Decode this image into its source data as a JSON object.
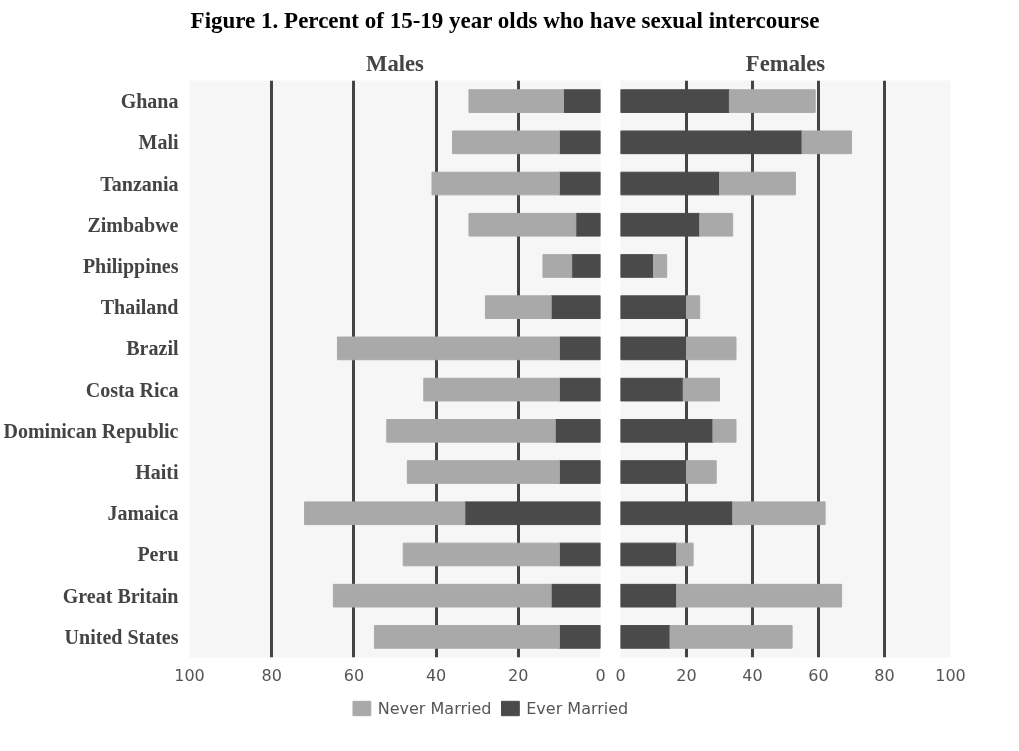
{
  "chart_data": [
    {
      "type": "bar",
      "title": "Figure 1. Percent of 15-19 year olds who have sexual intercourse",
      "subtitle": "Males",
      "orientation": "horizontal",
      "stacked": true,
      "categories": [
        "Ghana",
        "Mali",
        "Tanzania",
        "Zimbabwe",
        "Philippines",
        "Thailand",
        "Brazil",
        "Costa Rica",
        "Dominican Republic",
        "Haiti",
        "Jamaica",
        "Peru",
        "Great Britain",
        "United States"
      ],
      "series": [
        {
          "name": "Ever Married",
          "color": "#4a4a4a",
          "values": [
            9,
            10,
            10,
            6,
            7,
            12,
            10,
            10,
            11,
            10,
            33,
            10,
            12,
            10
          ]
        },
        {
          "name": "Never Married",
          "color": "#a9a9a9",
          "values": [
            23,
            26,
            31,
            26,
            7,
            16,
            54,
            33,
            41,
            37,
            39,
            38,
            53,
            45
          ]
        }
      ],
      "xlim": [
        100,
        0
      ],
      "xticks": [
        100,
        80,
        60,
        40,
        20,
        0
      ],
      "grid": "x",
      "legend": "bottom"
    },
    {
      "type": "bar",
      "subtitle": "Females",
      "orientation": "horizontal",
      "stacked": true,
      "tick_labels": "x",
      "categories": [
        null,
        null,
        null,
        null,
        null,
        null,
        null,
        null,
        null,
        null,
        null,
        null,
        null,
        null
      ],
      "series": [
        {
          "color": "#4a4a4a",
          "values": [
            33,
            55,
            30,
            24,
            10,
            20,
            20,
            19,
            28,
            20,
            34,
            17,
            17,
            15
          ]
        },
        {
          "color": "#a9a9a9",
          "values": [
            26,
            15,
            23,
            10,
            4,
            4,
            15,
            11,
            7,
            9,
            28,
            5,
            50,
            37
          ]
        }
      ],
      "xlim": [
        0,
        100
      ],
      "xticks": [
        0,
        20,
        40,
        60,
        80,
        100
      ],
      "grid": "x"
    }
  ]
}
